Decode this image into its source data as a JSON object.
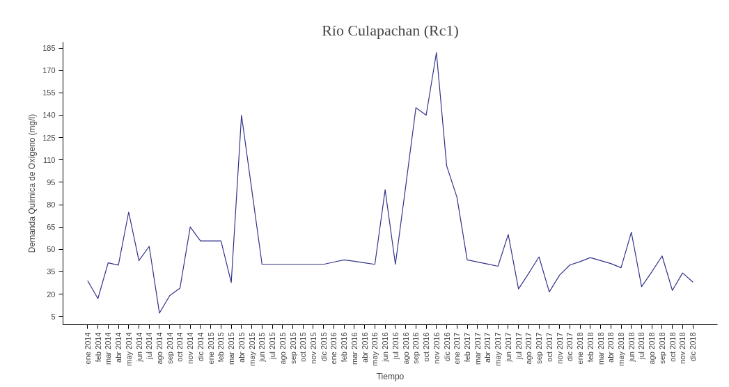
{
  "chart_data": {
    "type": "line",
    "title": "Río Culapachan (Rc1)",
    "xlabel": "Tiempo",
    "ylabel": "Demanda Química de Oxígeno (mg/l)",
    "categories": [
      "ene 2014",
      "feb 2014",
      "mar 2014",
      "abr 2014",
      "may 2014",
      "jun 2014",
      "jul 2014",
      "ago 2014",
      "sep 2014",
      "oct 2014",
      "nov 2014",
      "dic 2014",
      "ene 2015",
      "feb 2015",
      "mar 2015",
      "abr 2015",
      "may 2015",
      "jun 2015",
      "jul 2015",
      "ago 2015",
      "sep 2015",
      "oct 2015",
      "nov 2015",
      "dic 2015",
      "ene 2016",
      "feb 2016",
      "mar 2016",
      "abr 2016",
      "may 2016",
      "jun 2016",
      "jul 2016",
      "ago 2016",
      "sep 2016",
      "oct 2016",
      "nov 2016",
      "dic 2016",
      "ene 2017",
      "feb 2017",
      "mar 2017",
      "abr 2017",
      "may 2017",
      "jun 2017",
      "jul 2017",
      "ago 2017",
      "sep 2017",
      "oct 2017",
      "nov 2017",
      "dic 2017",
      "ene 2018",
      "feb 2018",
      "mar 2018",
      "abr 2018",
      "may 2018",
      "jun 2018",
      "jul 2018",
      "ago 2018",
      "sep 2018",
      "oct 2018",
      "nov 2018",
      "dic 2018"
    ],
    "series": [
      {
        "color": "#32328c",
        "values": [
          29,
          17,
          41,
          39.5,
          75,
          42.5,
          52,
          7.3,
          19,
          24,
          65,
          55.7,
          55.7,
          55.7,
          27.8,
          140,
          90,
          40,
          40,
          40,
          40,
          40,
          40,
          40,
          41.5,
          43,
          42,
          41,
          40,
          90,
          40,
          92,
          145,
          140,
          182,
          106,
          85,
          43,
          41.6,
          40.2,
          38.7,
          60,
          23.5,
          34,
          45,
          21.5,
          32.7,
          39.5,
          41.8,
          44.5,
          42.5,
          40.5,
          37.7,
          61.5,
          25,
          35,
          45.6,
          22.5,
          34.2,
          28.1
        ]
      }
    ],
    "ylim": [
      -0.5,
      189
    ],
    "yticks": [
      5,
      20,
      35,
      50,
      65,
      80,
      95,
      110,
      125,
      140,
      155,
      170,
      185
    ],
    "grid": false,
    "marker": "none",
    "line_style": "solid"
  }
}
